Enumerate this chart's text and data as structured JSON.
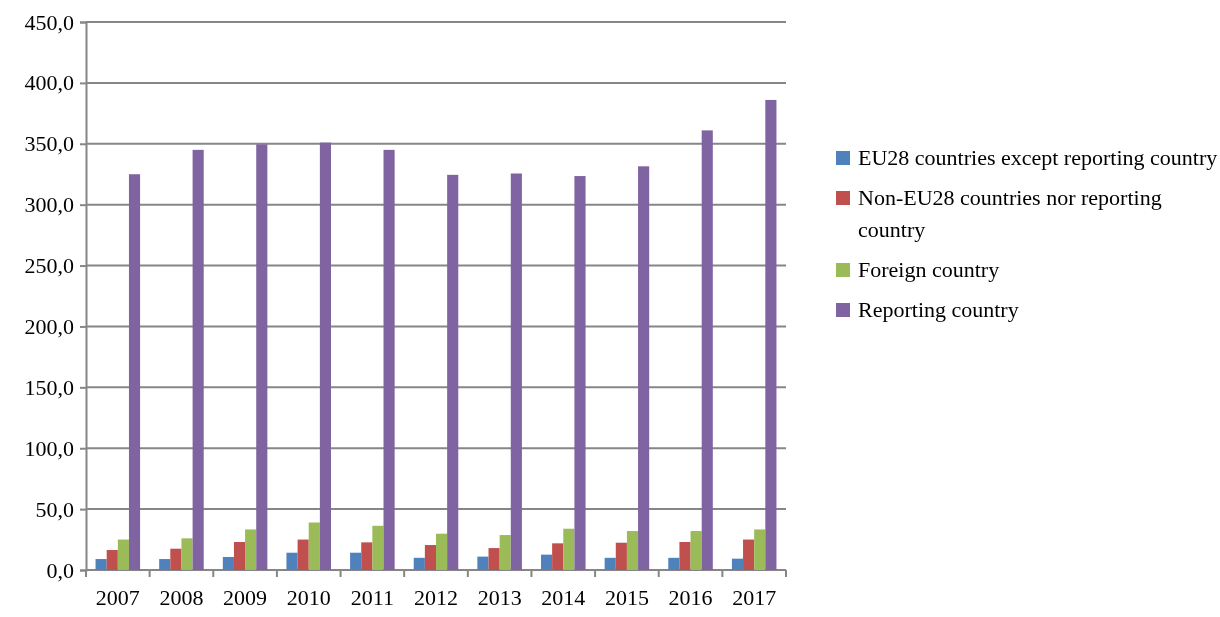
{
  "chart_data": {
    "type": "bar",
    "categories": [
      "2007",
      "2008",
      "2009",
      "2010",
      "2011",
      "2012",
      "2013",
      "2014",
      "2015",
      "2016",
      "2017"
    ],
    "series": [
      {
        "name": "EU28 countries except reporting country",
        "color": "#4f81bd",
        "values": [
          9,
          9,
          10.7,
          14.2,
          14.2,
          10,
          11,
          12.6,
          10,
          10,
          9.3
        ]
      },
      {
        "name": "Non-EU28 countries nor reporting country",
        "color": "#c0504d",
        "values": [
          16.4,
          17.5,
          23,
          25,
          22.7,
          20.5,
          18,
          21.9,
          22.4,
          23,
          25
        ]
      },
      {
        "name": "Foreign country",
        "color": "#9bbb59",
        "values": [
          25,
          26,
          33.3,
          39,
          36.3,
          29.8,
          28.7,
          33.9,
          32,
          32,
          33.3
        ]
      },
      {
        "name": "Reporting country",
        "color": "#8064a2",
        "values": [
          325,
          345,
          349.5,
          351,
          345,
          324.5,
          325.6,
          323.5,
          331.5,
          361,
          386
        ]
      }
    ],
    "ylim": [
      0,
      450
    ],
    "yticks": [
      {
        "value": 0,
        "label": "0,0"
      },
      {
        "value": 50,
        "label": "50,0"
      },
      {
        "value": 100,
        "label": "100,0"
      },
      {
        "value": 150,
        "label": "150,0"
      },
      {
        "value": 200,
        "label": "200,0"
      },
      {
        "value": 250,
        "label": "250,0"
      },
      {
        "value": 300,
        "label": "300,0"
      },
      {
        "value": 350,
        "label": "350,0"
      },
      {
        "value": 400,
        "label": "400,0"
      },
      {
        "value": 450,
        "label": "450,0"
      }
    ],
    "grid": "y",
    "legend": "right"
  }
}
